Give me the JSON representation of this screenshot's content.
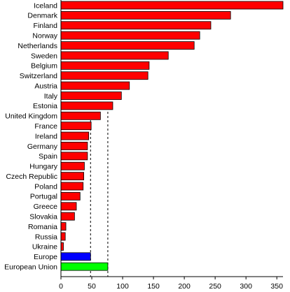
{
  "chart_data": {
    "type": "bar",
    "orientation": "horizontal",
    "title": "",
    "xlabel": "",
    "ylabel": "",
    "xlim": [
      0,
      360
    ],
    "x_ticks": [
      0,
      50,
      100,
      150,
      200,
      250,
      300,
      350
    ],
    "grid": false,
    "legend": "none",
    "categories": [
      "Iceland",
      "Denmark",
      "Finland",
      "Norway",
      "Netherlands",
      "Sweden",
      "Belgium",
      "Switzerland",
      "Austria",
      "Italy",
      "Estonia",
      "United Kingdom",
      "France",
      "Ireland",
      "Germany",
      "Spain",
      "Hungary",
      "Czech Republic",
      "Poland",
      "Portugal",
      "Greece",
      "Slovakia",
      "Romania",
      "Russia",
      "Ukraine",
      "Europe",
      "European Union"
    ],
    "values": [
      360,
      275,
      243,
      225,
      216,
      174,
      143,
      141,
      111,
      98,
      84,
      64,
      49,
      45,
      43,
      43,
      38,
      37,
      36,
      31,
      25,
      22,
      8,
      7,
      4,
      48,
      76
    ],
    "bar_colors": [
      "#ff0000",
      "#ff0000",
      "#ff0000",
      "#ff0000",
      "#ff0000",
      "#ff0000",
      "#ff0000",
      "#ff0000",
      "#ff0000",
      "#ff0000",
      "#ff0000",
      "#ff0000",
      "#ff0000",
      "#ff0000",
      "#ff0000",
      "#ff0000",
      "#ff0000",
      "#ff0000",
      "#ff0000",
      "#ff0000",
      "#ff0000",
      "#ff0000",
      "#ff0000",
      "#ff0000",
      "#ff0000",
      "#0000ff",
      "#00ff00"
    ],
    "reference_lines": [
      {
        "value": 48,
        "style": "dashed"
      },
      {
        "value": 76,
        "style": "dashed"
      }
    ]
  }
}
